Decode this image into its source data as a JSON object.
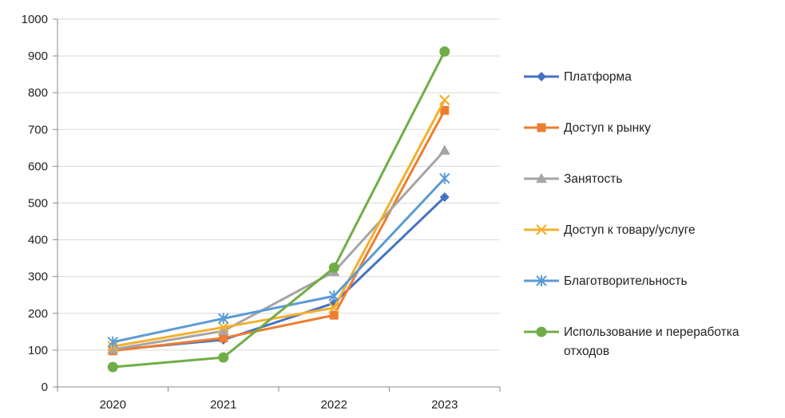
{
  "chart_data": {
    "type": "line",
    "title": "",
    "xlabel": "",
    "ylabel": "",
    "categories": [
      "2020",
      "2021",
      "2022",
      "2023"
    ],
    "ylim": [
      0,
      1000
    ],
    "yticks": [
      0,
      100,
      200,
      300,
      400,
      500,
      600,
      700,
      800,
      900,
      1000
    ],
    "grid": true,
    "legend_position": "right",
    "series": [
      {
        "name": "Платформа",
        "values": [
          100,
          128,
          228,
          516
        ],
        "color": "#4472C4",
        "marker": "diamond"
      },
      {
        "name": "Доступ к рынку",
        "values": [
          98,
          133,
          195,
          752
        ],
        "color": "#ED7D31",
        "marker": "square"
      },
      {
        "name": "Занятость",
        "values": [
          102,
          152,
          313,
          643
        ],
        "color": "#A5A5A5",
        "marker": "triangle"
      },
      {
        "name": "Доступ к товару/услуге",
        "values": [
          110,
          162,
          215,
          780
        ],
        "color": "#F2B02C",
        "marker": "x"
      },
      {
        "name": "Благотворительность",
        "values": [
          122,
          186,
          247,
          567
        ],
        "color": "#5B9BD5",
        "marker": "star"
      },
      {
        "name": "Использование и переработка отходов",
        "values": [
          54,
          80,
          324,
          912
        ],
        "color": "#70AD47",
        "marker": "circle"
      }
    ]
  }
}
